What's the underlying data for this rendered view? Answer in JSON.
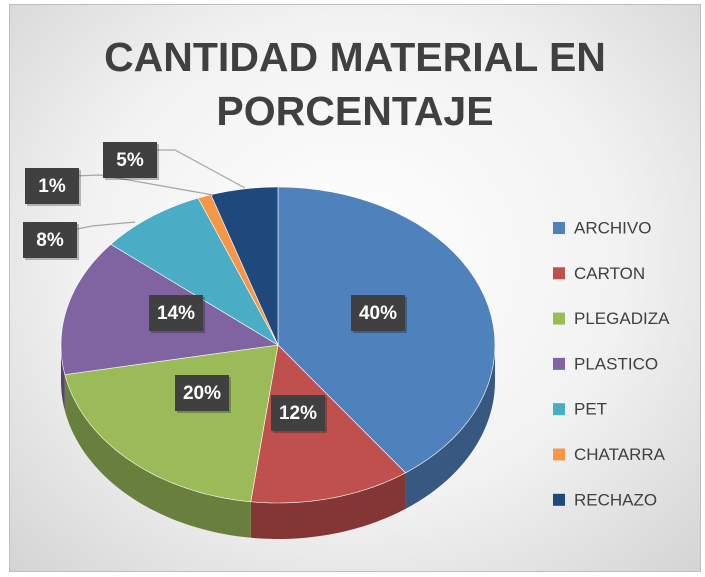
{
  "chart_data": {
    "type": "pie",
    "title": "CANTIDAD MATERIAL EN PORCENTAJE",
    "categories": [
      "ARCHIVO",
      "CARTON",
      "PLEGADIZA",
      "PLASTICO",
      "PET",
      "CHATARRA",
      "RECHAZO"
    ],
    "values": [
      40,
      12,
      20,
      14,
      8,
      1,
      5
    ],
    "value_labels": [
      "40%",
      "12%",
      "20%",
      "14%",
      "8%",
      "1%",
      "5%"
    ],
    "colors": [
      "#4f81bd",
      "#c0504d",
      "#9bbb59",
      "#8064a2",
      "#4bacc6",
      "#f79646",
      "#1f497d"
    ],
    "legend": "right"
  }
}
